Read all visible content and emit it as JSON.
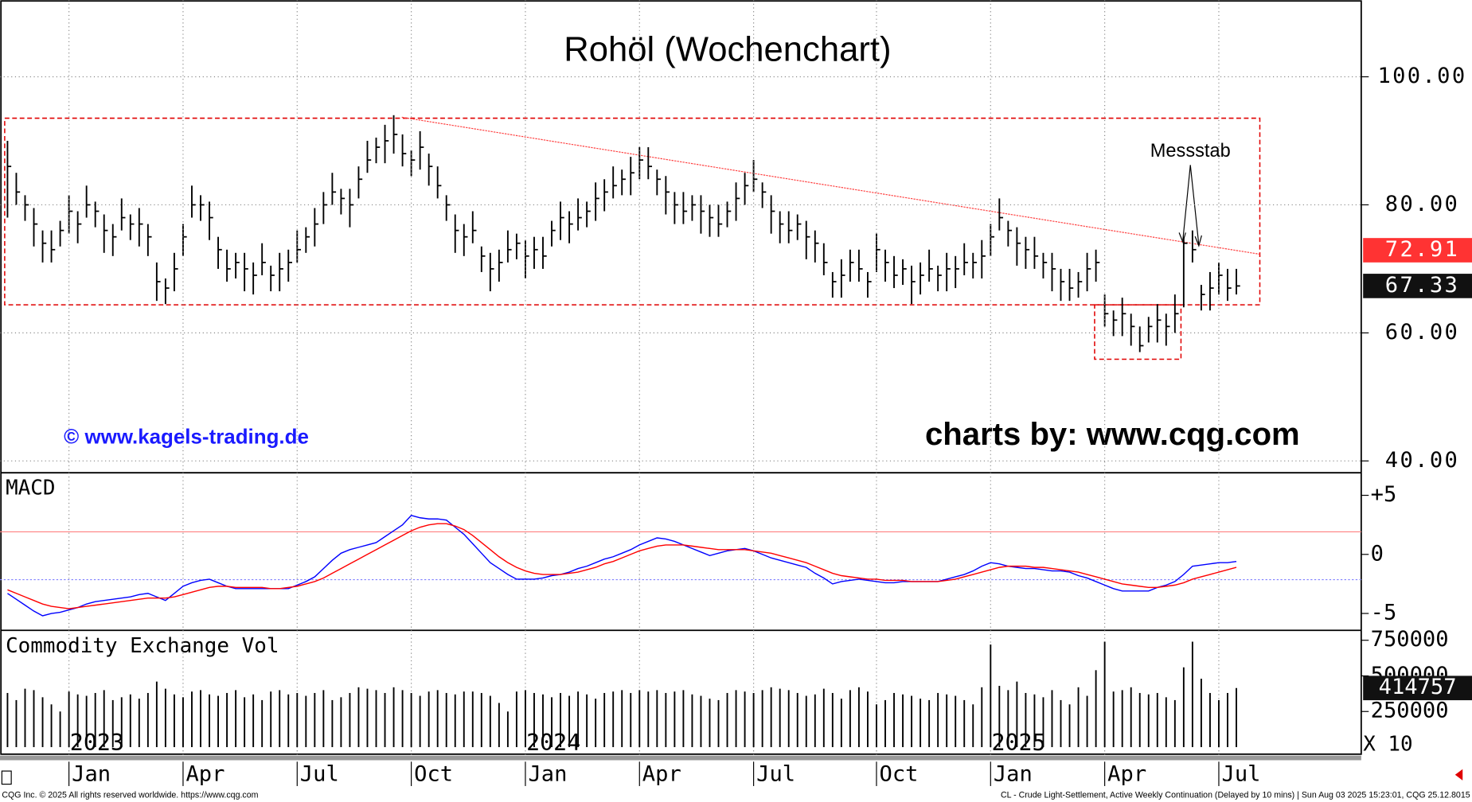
{
  "chart_data": [
    {
      "type": "ohlc",
      "title": "Rohöl (Wochenchart)",
      "color": "#000000",
      "categories": [
        null,
        null,
        null,
        null,
        null,
        null,
        null,
        "Jan",
        null,
        null,
        null,
        null,
        null,
        null,
        null,
        null,
        null,
        null,
        null,
        null,
        "Apr",
        null,
        null,
        null,
        null,
        null,
        null,
        null,
        null,
        null,
        null,
        null,
        null,
        "Jul",
        null,
        null,
        null,
        null,
        null,
        null,
        null,
        null,
        null,
        null,
        null,
        null,
        "Oct",
        null,
        null,
        null,
        null,
        null,
        null,
        null,
        null,
        null,
        null,
        null,
        null,
        "Jan",
        null,
        null,
        null,
        null,
        null,
        null,
        null,
        null,
        null,
        null,
        null,
        null,
        "Apr",
        null,
        null,
        null,
        null,
        null,
        null,
        null,
        null,
        null,
        null,
        null,
        null,
        "Jul",
        null,
        null,
        null,
        null,
        null,
        null,
        null,
        null,
        null,
        null,
        null,
        null,
        null,
        "Oct",
        null,
        null,
        null,
        null,
        null,
        null,
        null,
        null,
        null,
        null,
        null,
        null,
        "Jan",
        null,
        null,
        null,
        null,
        null,
        null,
        null,
        null,
        null,
        null,
        null,
        null,
        "Apr",
        null,
        null,
        null,
        null,
        null,
        null,
        null,
        null,
        null,
        null,
        null,
        null,
        "Jul",
        null,
        null
      ],
      "years": [
        null,
        null,
        null,
        null,
        null,
        null,
        null,
        "2023",
        null,
        null,
        null,
        null,
        null,
        null,
        null,
        null,
        null,
        null,
        null,
        null,
        null,
        null,
        null,
        null,
        null,
        null,
        null,
        null,
        null,
        null,
        null,
        null,
        null,
        null,
        null,
        null,
        null,
        null,
        null,
        null,
        null,
        null,
        null,
        null,
        null,
        null,
        null,
        null,
        null,
        null,
        null,
        null,
        null,
        null,
        null,
        null,
        null,
        null,
        null,
        "2024",
        null,
        null,
        null,
        null,
        null,
        null,
        null,
        null,
        null,
        null,
        null,
        null,
        null,
        null,
        null,
        null,
        null,
        null,
        null,
        null,
        null,
        null,
        null,
        null,
        null,
        null,
        null,
        null,
        null,
        null,
        null,
        null,
        null,
        null,
        null,
        null,
        null,
        null,
        null,
        null,
        null,
        null,
        null,
        null,
        null,
        null,
        null,
        null,
        null,
        null,
        null,
        null,
        "2025",
        null,
        null,
        null,
        null,
        null,
        null,
        null,
        null,
        null,
        null,
        null,
        null,
        null,
        null,
        null,
        null,
        null,
        null,
        null,
        null,
        null,
        null,
        null,
        null,
        null,
        null,
        null,
        null,
        null,
        null,
        null,
        null
      ],
      "high": [
        90,
        85,
        81.5,
        79.5,
        76,
        76,
        77.5,
        81.5,
        79,
        83,
        80.5,
        78.5,
        77,
        81,
        78.5,
        79.5,
        77,
        71,
        68.5,
        72.5,
        77,
        83,
        81.5,
        80.5,
        75,
        73,
        72.5,
        72.5,
        71,
        74,
        70.5,
        72.5,
        73,
        76,
        76.5,
        79.5,
        82,
        85,
        82.5,
        82.5,
        86,
        90,
        90.5,
        92.5,
        94,
        91,
        88.5,
        91.5,
        88,
        86,
        81.5,
        78.5,
        77,
        79,
        73.5,
        72.5,
        73,
        76,
        75.5,
        74.5,
        75,
        75,
        77.5,
        80.5,
        79,
        81,
        80.5,
        83.5,
        84,
        86,
        85.5,
        87.5,
        89,
        89,
        85.5,
        84.5,
        82,
        82,
        81.5,
        81.5,
        80,
        80,
        80.5,
        83.5,
        85,
        87,
        83.5,
        81.5,
        79,
        79,
        78.5,
        77.5,
        76,
        74,
        69.5,
        71.5,
        73,
        73,
        69.5,
        75.5,
        73,
        72,
        71.5,
        70.5,
        71,
        73,
        70.5,
        72.5,
        72,
        74,
        72.5,
        74.5,
        77,
        81,
        77.5,
        76.5,
        75,
        75,
        72.5,
        72.5,
        70,
        70,
        69.5,
        72.5,
        73,
        66,
        63.5,
        65.5,
        63,
        61,
        62.5,
        64.5,
        63,
        66,
        75,
        76,
        67.5,
        69.5,
        71,
        70,
        70
      ],
      "low": [
        78,
        80,
        77.5,
        73.5,
        71,
        71,
        73.5,
        75.5,
        74,
        78,
        76.5,
        72.5,
        72,
        76,
        74.5,
        73.5,
        72,
        65,
        64.5,
        66.5,
        72,
        78,
        77.5,
        74.5,
        70,
        68,
        68.5,
        66.5,
        66,
        69,
        66.5,
        66.5,
        68,
        71,
        72.5,
        73.5,
        77,
        80,
        78.5,
        76.5,
        81,
        85,
        86.5,
        86.5,
        88,
        86,
        84.5,
        85.5,
        83,
        81,
        77.5,
        72.5,
        72,
        74,
        69.5,
        66.5,
        68,
        71,
        71.5,
        68.5,
        70,
        70,
        73.5,
        74.5,
        74,
        76,
        76.5,
        77.5,
        79,
        81,
        81.5,
        81.5,
        84,
        84,
        81.5,
        78.5,
        77,
        77,
        77.5,
        75.5,
        75,
        75,
        76.5,
        77.5,
        80,
        82,
        79.5,
        75.5,
        74,
        74,
        74.5,
        71.5,
        71,
        69,
        65.5,
        65.5,
        68,
        68,
        65.5,
        69.5,
        68,
        67,
        67.5,
        64.5,
        66,
        68,
        66.5,
        66.5,
        67,
        69,
        68.5,
        68.5,
        72,
        76,
        73.5,
        70.5,
        70,
        70,
        68.5,
        66.5,
        65,
        65,
        65.5,
        66.5,
        68,
        61,
        59.5,
        59.5,
        58,
        57,
        58.5,
        58.5,
        58,
        60,
        64,
        71,
        63.5,
        63.5,
        66,
        65,
        66
      ],
      "close": [
        86,
        82,
        80,
        77,
        74,
        73,
        76,
        79,
        77,
        80,
        79,
        76,
        75,
        78,
        77,
        77,
        75,
        68,
        67,
        70,
        75,
        80,
        80,
        78,
        73,
        70,
        71,
        70,
        69,
        71,
        69,
        70,
        71,
        73,
        75,
        77,
        80,
        82,
        81,
        80,
        84,
        87,
        89,
        90,
        91,
        88,
        87,
        89,
        86,
        83,
        80,
        76,
        75,
        76,
        72,
        70,
        71,
        73,
        74,
        72,
        73,
        72,
        76,
        78,
        77,
        78,
        79,
        81,
        82,
        83,
        84,
        85,
        87,
        86,
        84,
        82,
        80,
        79,
        80,
        79,
        78,
        77,
        79,
        81,
        83,
        84,
        82,
        79,
        77,
        76,
        77,
        75,
        74,
        71,
        68,
        69,
        71,
        70,
        68,
        73,
        71,
        69,
        70,
        68,
        69,
        70,
        69,
        70,
        70,
        71,
        71,
        72,
        75,
        78,
        76,
        74,
        73,
        72,
        71,
        70,
        68,
        67,
        68,
        70,
        71,
        63,
        62,
        63,
        61,
        58,
        61,
        62,
        61,
        63,
        74,
        73,
        66,
        67,
        69,
        67,
        67.33
      ],
      "price_labels": [
        {
          "value": 72.91,
          "color": "#ff3333"
        }
      ],
      "ylim": [
        38.3,
        111.7
      ],
      "yticks": [
        {
          "value": 40,
          "label": "40.00"
        },
        {
          "value": 60,
          "label": "60.00"
        },
        {
          "value": 80,
          "label": "80.00"
        },
        {
          "value": 100,
          "label": "100.00"
        }
      ],
      "grid": true,
      "annotations": [
        "Messstab",
        "© www.kagels-trading.de",
        "charts by: www.cqg.com"
      ]
    },
    {
      "type": "line",
      "label": "MACD",
      "series": [
        {
          "color": "#0000ff",
          "values": [
            -3.3,
            -3.8,
            -4.3,
            -4.8,
            -5.2,
            -5.0,
            -4.9,
            -4.7,
            -4.5,
            -4.2,
            -4.0,
            -3.9,
            -3.8,
            -3.7,
            -3.6,
            -3.4,
            -3.3,
            -3.6,
            -3.9,
            -3.3,
            -2.7,
            -2.4,
            -2.2,
            -2.1,
            -2.4,
            -2.7,
            -2.9,
            -2.9,
            -2.9,
            -2.9,
            -2.9,
            -2.9,
            -2.9,
            -2.6,
            -2.3,
            -1.9,
            -1.2,
            -0.5,
            0.1,
            0.4,
            0.6,
            0.8,
            1.0,
            1.5,
            2.0,
            2.5,
            3.3,
            3.1,
            3.0,
            3.0,
            2.9,
            2.3,
            1.7,
            0.9,
            0.1,
            -0.7,
            -1.2,
            -1.7,
            -2.1,
            -2.1,
            -2.1,
            -2.0,
            -1.8,
            -1.7,
            -1.5,
            -1.2,
            -1.0,
            -0.7,
            -0.4,
            -0.2,
            0.1,
            0.4,
            0.8,
            1.1,
            1.4,
            1.3,
            1.1,
            0.8,
            0.5,
            0.2,
            -0.1,
            0.1,
            0.3,
            0.4,
            0.5,
            0.3,
            0.0,
            -0.3,
            -0.5,
            -0.7,
            -0.9,
            -1.1,
            -1.6,
            -2.0,
            -2.5,
            -2.3,
            -2.2,
            -2.1,
            -2.2,
            -2.3,
            -2.4,
            -2.4,
            -2.3,
            -2.3,
            -2.3,
            -2.3,
            -2.3,
            -2.1,
            -1.9,
            -1.7,
            -1.4,
            -1.0,
            -0.7,
            -0.8,
            -1.0,
            -1.1,
            -1.2,
            -1.2,
            -1.3,
            -1.4,
            -1.4,
            -1.5,
            -1.8,
            -2.0,
            -2.3,
            -2.6,
            -2.9,
            -3.1,
            -3.1,
            -3.1,
            -3.1,
            -2.8,
            -2.6,
            -2.3,
            -1.7,
            -1.0,
            -0.9,
            -0.8,
            -0.7,
            -0.7,
            -0.6
          ]
        },
        {
          "color": "#ff0000",
          "values": [
            -3.0,
            -3.3,
            -3.6,
            -3.9,
            -4.2,
            -4.4,
            -4.5,
            -4.6,
            -4.5,
            -4.4,
            -4.3,
            -4.2,
            -4.1,
            -4.0,
            -3.9,
            -3.8,
            -3.7,
            -3.7,
            -3.7,
            -3.6,
            -3.4,
            -3.2,
            -3.0,
            -2.8,
            -2.7,
            -2.7,
            -2.8,
            -2.8,
            -2.8,
            -2.8,
            -2.9,
            -2.9,
            -2.8,
            -2.7,
            -2.5,
            -2.3,
            -2.0,
            -1.6,
            -1.2,
            -0.8,
            -0.4,
            0.0,
            0.4,
            0.8,
            1.2,
            1.6,
            2.0,
            2.3,
            2.5,
            2.6,
            2.6,
            2.4,
            2.1,
            1.6,
            1.0,
            0.4,
            -0.2,
            -0.7,
            -1.1,
            -1.4,
            -1.6,
            -1.7,
            -1.7,
            -1.7,
            -1.6,
            -1.5,
            -1.3,
            -1.1,
            -0.8,
            -0.6,
            -0.3,
            0.0,
            0.3,
            0.5,
            0.7,
            0.8,
            0.8,
            0.8,
            0.7,
            0.6,
            0.5,
            0.4,
            0.4,
            0.4,
            0.4,
            0.3,
            0.2,
            0.1,
            -0.1,
            -0.3,
            -0.5,
            -0.7,
            -1.0,
            -1.3,
            -1.6,
            -1.8,
            -1.9,
            -2.0,
            -2.1,
            -2.1,
            -2.2,
            -2.2,
            -2.2,
            -2.3,
            -2.3,
            -2.3,
            -2.3,
            -2.2,
            -2.1,
            -1.9,
            -1.7,
            -1.5,
            -1.3,
            -1.1,
            -1.0,
            -1.0,
            -1.0,
            -1.1,
            -1.1,
            -1.2,
            -1.3,
            -1.4,
            -1.5,
            -1.7,
            -1.9,
            -2.1,
            -2.3,
            -2.5,
            -2.6,
            -2.7,
            -2.8,
            -2.8,
            -2.7,
            -2.6,
            -2.4,
            -2.1,
            -1.9,
            -1.7,
            -1.5,
            -1.3,
            -1.1
          ]
        }
      ],
      "ylim": [
        -6.43,
        6.83
      ],
      "yticks": [
        {
          "value": 5,
          "label": "+5"
        },
        0,
        -5
      ]
    },
    {
      "type": "bar",
      "label": "Commodity Exchange Vol",
      "color": "#000000",
      "multiplier_label": "X 10",
      "values": [
        380000,
        330000,
        410000,
        400000,
        350000,
        300000,
        250000,
        390000,
        370000,
        360000,
        380000,
        400000,
        330000,
        350000,
        370000,
        340000,
        380000,
        460000,
        410000,
        370000,
        350000,
        390000,
        400000,
        370000,
        360000,
        380000,
        400000,
        350000,
        370000,
        330000,
        390000,
        400000,
        370000,
        380000,
        360000,
        380000,
        400000,
        330000,
        350000,
        380000,
        420000,
        410000,
        400000,
        380000,
        420000,
        400000,
        380000,
        360000,
        390000,
        400000,
        380000,
        370000,
        390000,
        390000,
        380000,
        360000,
        310000,
        250000,
        390000,
        400000,
        380000,
        370000,
        350000,
        380000,
        360000,
        390000,
        370000,
        340000,
        380000,
        390000,
        400000,
        380000,
        400000,
        390000,
        400000,
        380000,
        390000,
        400000,
        370000,
        360000,
        340000,
        330000,
        380000,
        400000,
        390000,
        380000,
        400000,
        420000,
        410000,
        400000,
        380000,
        360000,
        370000,
        410000,
        380000,
        340000,
        400000,
        420000,
        390000,
        300000,
        330000,
        380000,
        370000,
        360000,
        340000,
        330000,
        380000,
        370000,
        360000,
        330000,
        300000,
        420000,
        720000,
        430000,
        400000,
        460000,
        380000,
        370000,
        350000,
        400000,
        330000,
        300000,
        420000,
        360000,
        540000,
        740000,
        390000,
        400000,
        420000,
        380000,
        370000,
        380000,
        350000,
        330000,
        560000,
        740000,
        480000,
        380000,
        330000,
        380000,
        414757
      ],
      "ylim": [
        -56000,
        813000
      ],
      "yticks": [
        250000,
        500000,
        750000
      ]
    }
  ],
  "footer": {
    "left": "CQG Inc. © 2025 All rights reserved worldwide. https://www.cqg.com",
    "right": "CL - Crude Light-Settlement, Active Weekly Continuation (Delayed by 10 mins) | Sun Aug 03 2025 15:23:01, CQG 25.12.8015"
  }
}
